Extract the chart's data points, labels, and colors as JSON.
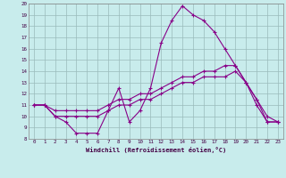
{
  "xlabel": "Windchill (Refroidissement éolien,°C)",
  "background_color": "#c8ecec",
  "line_color": "#880088",
  "grid_color": "#99bbbb",
  "xlim": [
    -0.5,
    23.5
  ],
  "ylim": [
    8,
    20
  ],
  "xticks": [
    0,
    1,
    2,
    3,
    4,
    5,
    6,
    7,
    8,
    9,
    10,
    11,
    12,
    13,
    14,
    15,
    16,
    17,
    18,
    19,
    20,
    21,
    22,
    23
  ],
  "yticks": [
    8,
    9,
    10,
    11,
    12,
    13,
    14,
    15,
    16,
    17,
    18,
    19,
    20
  ],
  "line1_x": [
    0,
    1,
    2,
    3,
    4,
    5,
    6,
    7,
    8,
    9,
    10,
    11,
    12,
    13,
    14,
    15,
    16,
    17,
    18,
    19,
    20,
    21,
    22,
    23
  ],
  "line1_y": [
    11,
    11,
    10,
    9.5,
    8.5,
    8.5,
    8.5,
    10.5,
    12.5,
    9.5,
    10.5,
    12.5,
    16.5,
    18.5,
    19.8,
    19,
    18.5,
    17.5,
    16,
    14.5,
    13,
    11.5,
    9.5,
    9.5
  ],
  "line2_x": [
    0,
    1,
    2,
    3,
    4,
    5,
    6,
    7,
    8,
    9,
    10,
    11,
    12,
    13,
    14,
    15,
    16,
    17,
    18,
    19,
    20,
    21,
    22,
    23
  ],
  "line2_y": [
    11,
    11,
    10.5,
    10.5,
    10.5,
    10.5,
    10.5,
    11,
    11.5,
    11.5,
    12,
    12,
    12.5,
    13,
    13.5,
    13.5,
    14,
    14,
    14.5,
    14.5,
    13,
    11,
    9.5,
    9.5
  ],
  "line3_x": [
    0,
    1,
    2,
    3,
    4,
    5,
    6,
    7,
    8,
    9,
    10,
    11,
    12,
    13,
    14,
    15,
    16,
    17,
    18,
    19,
    20,
    21,
    22,
    23
  ],
  "line3_y": [
    11,
    11,
    10,
    10,
    10,
    10,
    10,
    10.5,
    11,
    11,
    11.5,
    11.5,
    12,
    12.5,
    13,
    13,
    13.5,
    13.5,
    13.5,
    14,
    13,
    11.5,
    10,
    9.5
  ]
}
